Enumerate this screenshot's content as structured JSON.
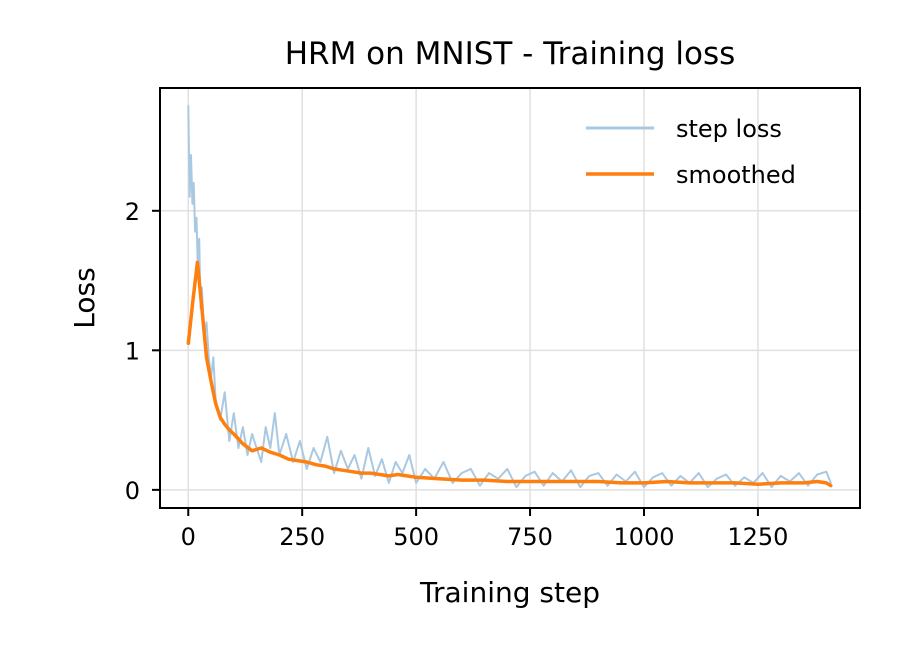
{
  "chart_data": {
    "type": "line",
    "title": "HRM on MNIST - Training loss",
    "xlabel": "Training step",
    "ylabel": "Loss",
    "xlim": [
      -62,
      1474
    ],
    "ylim": [
      -0.13,
      2.88
    ],
    "x_ticks": [
      0,
      250,
      500,
      750,
      1000,
      1250
    ],
    "x_tick_labels": [
      "0",
      "250",
      "500",
      "750",
      "1000",
      "1250"
    ],
    "y_ticks": [
      0,
      1,
      2
    ],
    "y_tick_labels": [
      "0",
      "1",
      "2"
    ],
    "grid": true,
    "legend_position": "top-right",
    "colors": {
      "step_loss": "#a9c8e2",
      "smoothed": "#ff7f0e",
      "grid": "#e0e0e0",
      "frame": "#000000"
    },
    "series": [
      {
        "name": "step loss",
        "color": "#a9c8e2",
        "x": [
          0,
          3,
          6,
          9,
          12,
          15,
          18,
          21,
          24,
          27,
          30,
          35,
          40,
          45,
          50,
          55,
          60,
          70,
          80,
          90,
          100,
          110,
          120,
          130,
          140,
          150,
          160,
          170,
          180,
          190,
          200,
          215,
          230,
          245,
          260,
          275,
          290,
          305,
          320,
          335,
          350,
          365,
          380,
          395,
          410,
          425,
          440,
          455,
          470,
          485,
          500,
          520,
          540,
          560,
          580,
          600,
          620,
          640,
          660,
          680,
          700,
          720,
          740,
          760,
          780,
          800,
          820,
          840,
          860,
          880,
          900,
          920,
          940,
          960,
          980,
          1000,
          1020,
          1040,
          1060,
          1080,
          1100,
          1120,
          1140,
          1160,
          1180,
          1200,
          1220,
          1240,
          1260,
          1280,
          1300,
          1320,
          1340,
          1360,
          1380,
          1400,
          1410
        ],
        "values": [
          2.75,
          2.1,
          2.4,
          2.05,
          2.2,
          1.85,
          1.95,
          1.6,
          1.8,
          1.3,
          1.45,
          1.1,
          1.2,
          0.95,
          0.8,
          0.95,
          0.65,
          0.5,
          0.7,
          0.35,
          0.55,
          0.3,
          0.45,
          0.25,
          0.4,
          0.3,
          0.2,
          0.45,
          0.3,
          0.55,
          0.25,
          0.4,
          0.2,
          0.35,
          0.15,
          0.3,
          0.2,
          0.38,
          0.12,
          0.28,
          0.15,
          0.25,
          0.08,
          0.3,
          0.1,
          0.22,
          0.05,
          0.2,
          0.12,
          0.25,
          0.05,
          0.15,
          0.08,
          0.2,
          0.05,
          0.12,
          0.15,
          0.03,
          0.12,
          0.08,
          0.15,
          0.02,
          0.1,
          0.13,
          0.03,
          0.12,
          0.06,
          0.14,
          0.02,
          0.1,
          0.12,
          0.03,
          0.11,
          0.06,
          0.13,
          0.02,
          0.09,
          0.12,
          0.03,
          0.1,
          0.05,
          0.12,
          0.02,
          0.08,
          0.11,
          0.03,
          0.09,
          0.05,
          0.12,
          0.02,
          0.1,
          0.06,
          0.12,
          0.03,
          0.11,
          0.13,
          0.05
        ]
      },
      {
        "name": "smoothed",
        "color": "#ff7f0e",
        "x": [
          0,
          10,
          20,
          30,
          40,
          50,
          60,
          70,
          80,
          90,
          100,
          120,
          140,
          160,
          180,
          200,
          220,
          240,
          260,
          280,
          300,
          320,
          340,
          360,
          380,
          400,
          420,
          440,
          460,
          480,
          500,
          550,
          600,
          650,
          700,
          750,
          800,
          850,
          900,
          950,
          1000,
          1050,
          1100,
          1150,
          1200,
          1250,
          1300,
          1350,
          1380,
          1400,
          1410
        ],
        "values": [
          1.05,
          1.35,
          1.63,
          1.3,
          0.95,
          0.78,
          0.62,
          0.52,
          0.47,
          0.43,
          0.4,
          0.33,
          0.28,
          0.3,
          0.27,
          0.25,
          0.22,
          0.21,
          0.2,
          0.18,
          0.17,
          0.15,
          0.14,
          0.13,
          0.12,
          0.12,
          0.11,
          0.1,
          0.11,
          0.1,
          0.09,
          0.08,
          0.07,
          0.07,
          0.06,
          0.06,
          0.06,
          0.06,
          0.06,
          0.05,
          0.05,
          0.06,
          0.05,
          0.05,
          0.05,
          0.04,
          0.05,
          0.05,
          0.06,
          0.05,
          0.03
        ]
      }
    ]
  }
}
